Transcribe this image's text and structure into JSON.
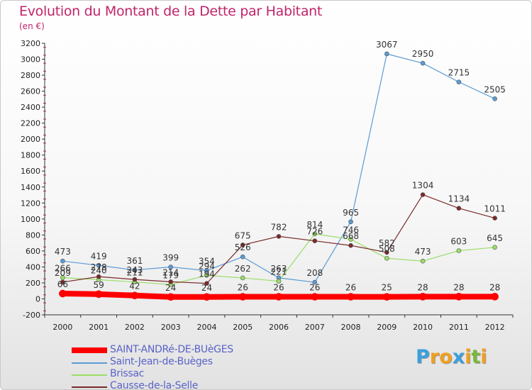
{
  "header": {
    "title": "Evolution du Montant de la Dette par Habitant",
    "subtitle": "(en €)"
  },
  "brand": {
    "letters": [
      "P",
      "r",
      "o",
      "x",
      "i",
      "t",
      "i"
    ],
    "colors": [
      "#3aa0dd",
      "#f0a020",
      "#f0a020",
      "#3aa0dd",
      "#f0a020",
      "#7ab83a",
      "#f0a020"
    ]
  },
  "colors": {
    "title": "#c0246b",
    "legend_text": "#5a63c8",
    "axis": "#333333",
    "grid_tick_marks": "#c0246b"
  },
  "chart_data": {
    "type": "line",
    "x": [
      "2000",
      "2001",
      "2002",
      "2003",
      "2004",
      "2005",
      "2006",
      "2007",
      "2008",
      "2009",
      "2010",
      "2011",
      "2012"
    ],
    "ylim": [
      -200,
      3200
    ],
    "yticks": [
      -200,
      0,
      200,
      400,
      600,
      800,
      1000,
      1200,
      1400,
      1600,
      1800,
      2000,
      2200,
      2400,
      2600,
      2800,
      3000,
      3200
    ],
    "ylabel": "(en €)",
    "xlabel": "",
    "grid": false,
    "legend_position": "bottom-left",
    "series": [
      {
        "name": "SAINT-ANDRé-DE-BUèGES",
        "color": "#ff0000",
        "width": 8,
        "values": [
          66,
          59,
          42,
          24,
          24,
          26,
          26,
          26,
          26,
          25,
          28,
          28,
          28
        ]
      },
      {
        "name": "Saint-Jean-de-Buèges",
        "color": "#5b9bd5",
        "width": 1.2,
        "values": [
          473,
          419,
          361,
          399,
          354,
          526,
          263,
          208,
          965,
          3067,
          2950,
          2715,
          2505
        ]
      },
      {
        "name": "Brissac",
        "color": "#99dd66",
        "width": 1.2,
        "values": [
          266,
          240,
          211,
          179,
          294,
          262,
          221,
          814,
          746,
          508,
          473,
          603,
          645
        ]
      },
      {
        "name": "Causse-de-la-Selle",
        "color": "#7a2a2a",
        "width": 1.2,
        "values": [
          209,
          278,
          243,
          214,
          194,
          675,
          782,
          726,
          668,
          582,
          1304,
          1134,
          1011
        ]
      }
    ]
  }
}
